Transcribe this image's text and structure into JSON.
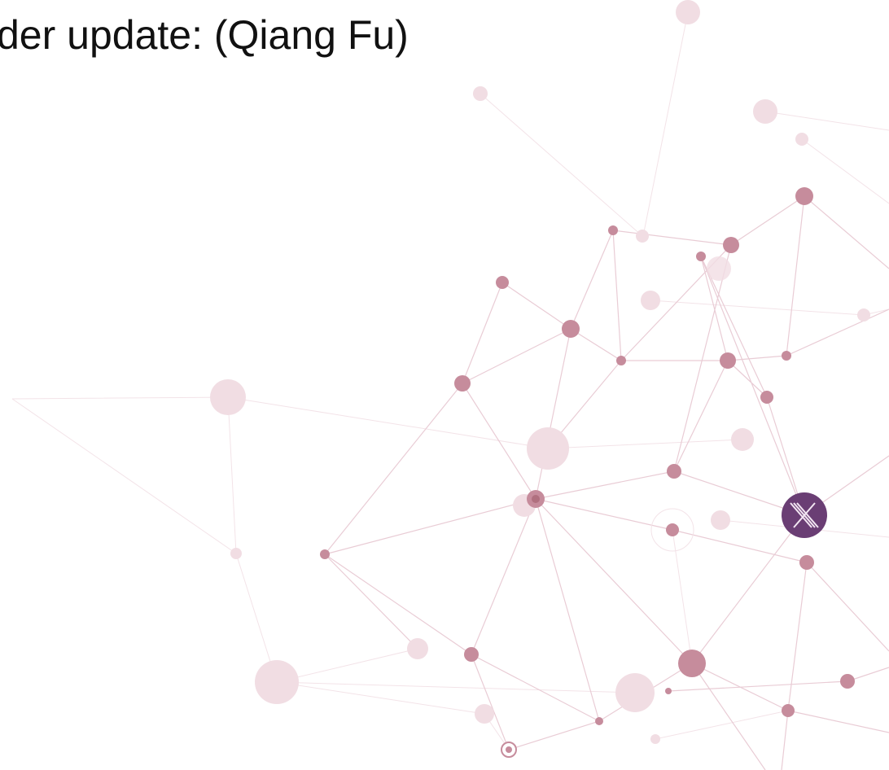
{
  "title": "der update: (Qiang Fu)"
}
